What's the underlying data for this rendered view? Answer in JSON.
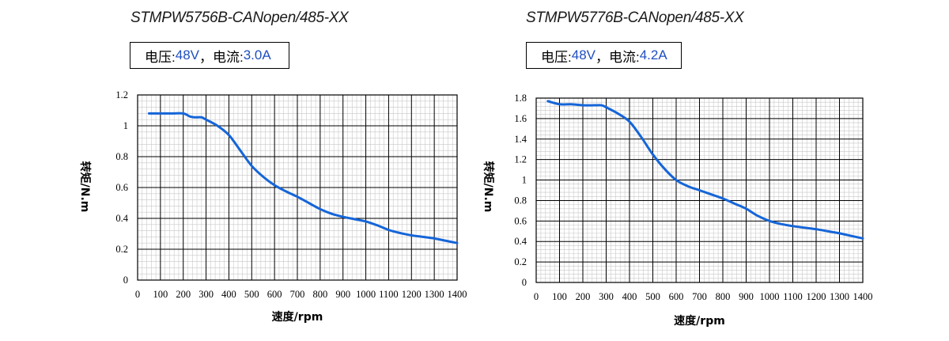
{
  "colors": {
    "curve": "#1565d8",
    "accent_text": "#1f4fbf",
    "major_grid": "#000000",
    "minor_grid": "#c8c8c8"
  },
  "charts": [
    {
      "model": "STMPW5756B-CANopen/485-XX",
      "spec": {
        "voltage_label": "电压: ",
        "voltage_value": "48V",
        "separator": "，",
        "current_label": "电流: ",
        "current_value": "3.0A"
      }
    },
    {
      "model": "STMPW5776B-CANopen/485-XX",
      "spec": {
        "voltage_label": "电压: ",
        "voltage_value": "48V",
        "separator": "，",
        "current_label": "电流: ",
        "current_value": "4.2A"
      }
    }
  ],
  "chart_data": [
    {
      "type": "line",
      "title": "STMPW5756B-CANopen/485-XX",
      "xlabel": "速度/rpm",
      "ylabel": "转矩/N.m",
      "xlim": [
        0,
        1400
      ],
      "ylim": [
        0,
        1.2
      ],
      "xticks": [
        0,
        100,
        200,
        300,
        400,
        500,
        600,
        700,
        800,
        900,
        1000,
        1100,
        1200,
        1300,
        1400
      ],
      "yticks": [
        0,
        0.2,
        0.4,
        0.6,
        0.8,
        1,
        1.2
      ],
      "yticklabels": [
        "0",
        "0.2",
        "0.4",
        "0.6",
        "0.8",
        "1",
        "1.2"
      ],
      "grid": true,
      "series": [
        {
          "x": [
            50,
            100,
            150,
            200,
            230,
            250,
            280,
            300,
            350,
            400,
            450,
            500,
            550,
            600,
            650,
            700,
            750,
            800,
            850,
            900,
            950,
            1000,
            1050,
            1100,
            1150,
            1200,
            1250,
            1300,
            1350,
            1400
          ],
          "y": [
            1.08,
            1.08,
            1.08,
            1.08,
            1.06,
            1.055,
            1.055,
            1.04,
            1.0,
            0.94,
            0.84,
            0.74,
            0.67,
            0.615,
            0.575,
            0.54,
            0.5,
            0.46,
            0.43,
            0.41,
            0.395,
            0.38,
            0.355,
            0.325,
            0.305,
            0.29,
            0.28,
            0.27,
            0.255,
            0.24
          ]
        }
      ]
    },
    {
      "type": "line",
      "title": "STMPW5776B-CANopen/485-XX",
      "xlabel": "速度/rpm",
      "ylabel": "转矩/N.m",
      "xlim": [
        0,
        1400
      ],
      "ylim": [
        0,
        1.8
      ],
      "xticks": [
        0,
        100,
        200,
        300,
        400,
        500,
        600,
        700,
        800,
        900,
        1000,
        1100,
        1200,
        1300,
        1400
      ],
      "yticks": [
        0,
        0.2,
        0.4,
        0.6,
        0.8,
        1,
        1.2,
        1.4,
        1.6,
        1.8
      ],
      "yticklabels": [
        "0",
        "0.2",
        "0.4",
        "0.6",
        "0.8",
        "1",
        "1.2",
        "1.4",
        "1.6",
        "1.8"
      ],
      "grid": true,
      "series": [
        {
          "x": [
            50,
            100,
            150,
            200,
            250,
            280,
            300,
            350,
            400,
            450,
            500,
            550,
            600,
            650,
            700,
            750,
            800,
            850,
            900,
            950,
            1000,
            1050,
            1100,
            1150,
            1200,
            1250,
            1300,
            1350,
            1400
          ],
          "y": [
            1.77,
            1.74,
            1.74,
            1.73,
            1.73,
            1.73,
            1.71,
            1.65,
            1.57,
            1.42,
            1.25,
            1.11,
            1.0,
            0.94,
            0.9,
            0.86,
            0.82,
            0.77,
            0.72,
            0.65,
            0.6,
            0.57,
            0.55,
            0.535,
            0.52,
            0.5,
            0.48,
            0.455,
            0.43
          ]
        }
      ]
    }
  ]
}
